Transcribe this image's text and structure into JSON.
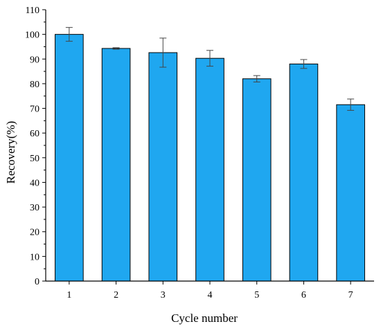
{
  "chart_data": {
    "type": "bar",
    "categories": [
      "1",
      "2",
      "3",
      "4",
      "5",
      "6",
      "7"
    ],
    "values": [
      100.0,
      94.3,
      92.6,
      90.3,
      82.0,
      88.0,
      71.5
    ],
    "errors": [
      2.8,
      0.3,
      5.9,
      3.2,
      1.3,
      1.8,
      2.3
    ],
    "xlabel": "Cycle number",
    "ylabel": "Recovery(%)",
    "ylim": [
      0,
      110
    ],
    "yticks": [
      0,
      10,
      20,
      30,
      40,
      50,
      60,
      70,
      80,
      90,
      100,
      110
    ],
    "grid": false,
    "legend": "none",
    "bar_color": "#1FA7F0",
    "bar_edge_color": "#000000",
    "error_bar_color": "#444444"
  }
}
